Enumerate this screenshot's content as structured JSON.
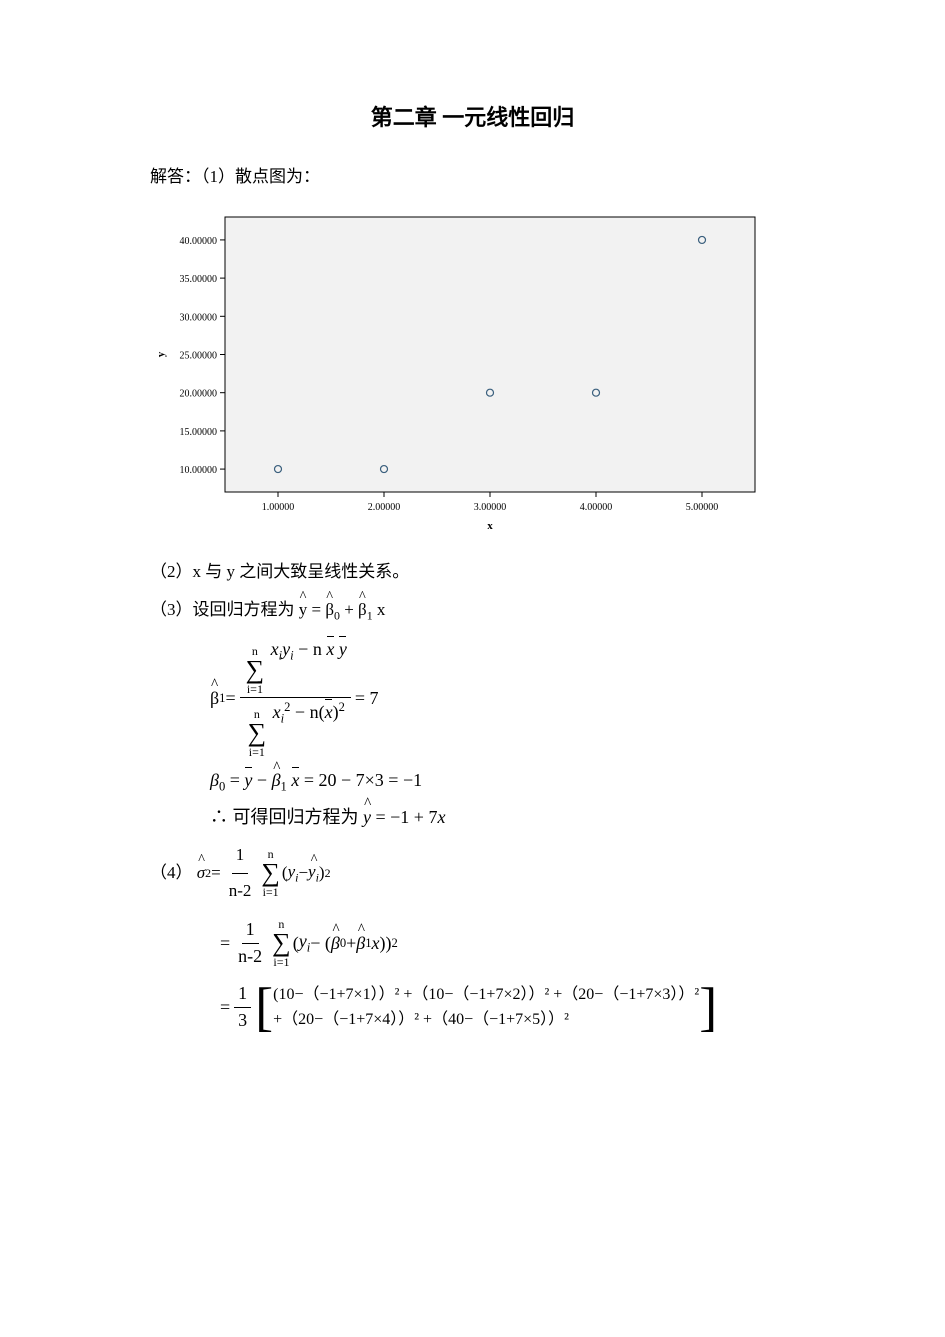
{
  "title": "第二章    一元线性回归",
  "intro": "解答：（1）散点图为：",
  "chart": {
    "type": "scatter",
    "background_color": "#f2f2f2",
    "border_color": "#000000",
    "tick_color": "#000000",
    "tick_font_size": 10,
    "axis_label_font_size": 11,
    "axis_label_weight": "bold",
    "marker_stroke": "#3a5f7d",
    "marker_fill": "none",
    "marker_radius": 3.5,
    "xlabel": "x",
    "ylabel": "y",
    "xlim": [
      0.5,
      5.5
    ],
    "ylim": [
      7,
      43
    ],
    "xticks": [
      1.0,
      2.0,
      3.0,
      4.0,
      5.0
    ],
    "xtick_labels": [
      "1.00000",
      "2.00000",
      "3.00000",
      "4.00000",
      "5.00000"
    ],
    "yticks": [
      10,
      15,
      20,
      25,
      30,
      35,
      40
    ],
    "ytick_labels": [
      "10.00000",
      "15.00000",
      "20.00000",
      "25.00000",
      "30.00000",
      "35.00000",
      "40.00000"
    ],
    "points": [
      [
        1,
        10
      ],
      [
        2,
        10
      ],
      [
        3,
        20
      ],
      [
        4,
        20
      ],
      [
        5,
        40
      ]
    ]
  },
  "p2": "（2）x 与 y 之间大致呈线性关系。",
  "p3_prefix": "（3）设回归方程为 ",
  "eq_reg_model_lhs": "y",
  "eq_reg_model_rhs_1": "β",
  "eq_reg_model_plus": "+",
  "eq_reg_model_rhs_2": "β",
  "eq_reg_model_x": " x",
  "beta1_hat": "β",
  "beta1_sub": "1",
  "beta1_eq": "=",
  "sum_top": "n",
  "sum_bot": "i=1",
  "num_b1": "xᵢyᵢ − n x̄ ȳ",
  "den_b1": "xᵢ² − n( x̄ )²",
  "b1_val": "= 7",
  "beta0_line": "β₀ = ȳ − β̂₁ x̄ = 20 − 7×3 = −1",
  "therefore_prefix": "∴ 可得回归方程为 ",
  "therefore_eq": "ŷ = −1 + 7x",
  "p4_prefix": "（4）",
  "sigma_hat": "σ",
  "sigma_sup": "2",
  "sigma_eq": " = ",
  "frac_1_n2_num": "1",
  "frac_1_n2_den": "n-2",
  "sum_n": "n",
  "sum_i1": "i=1",
  "sse_term1": "(yᵢ − ŷᵢ)",
  "sse_sup": "2",
  "eq_sign": "= ",
  "sse_term2": "(yᵢ − (β̂₀ + β̂₁ x))",
  "frac_13_num": "1",
  "frac_13_den": "3",
  "bracket_row1": "(10−（−1+7×1））² +（10−（−1+7×2））² +（20−（−1+7×3））²",
  "bracket_row2": "+（20−（−1+7×4））² +（40−（−1+7×5））²"
}
